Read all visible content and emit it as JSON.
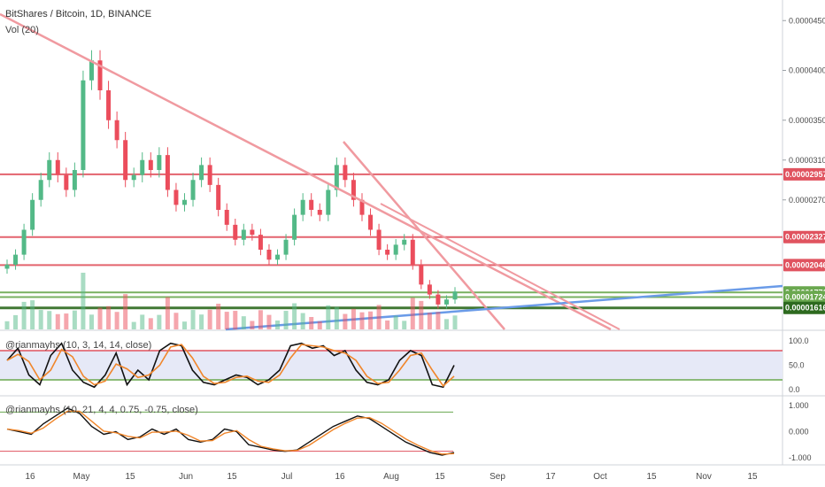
{
  "header": {
    "symbol": "BitShares / Bitcoin, 1D, BINANCE",
    "volume_label": "Vol (20)"
  },
  "indicators": {
    "stoch": {
      "label": "@rianmayhs (10, 3, 14, 14, close)",
      "ticks": [
        "100.0",
        "50.0",
        "0.0"
      ]
    },
    "osc": {
      "label": "@rianmayhs (10, 21, 4, 4, 0.75, -0.75, close)",
      "ticks": [
        "1.000",
        "0.000",
        "-1.000"
      ]
    }
  },
  "colors": {
    "up": "#53b987",
    "down": "#eb4d5c",
    "level_red": "#e0535f",
    "level_green": "#6aa84f",
    "trend_pink": "#f09aa0",
    "trend_blue": "#6a9be8",
    "dark_green": "#2d6a1f",
    "black": "#111111",
    "orange": "#f0862b"
  },
  "chart_data": {
    "type": "candlestick",
    "title": "BitShares / Bitcoin, 1D, BINANCE",
    "y_ticks": [
      "0.00004500",
      "0.00004000",
      "0.00003500",
      "0.00003100",
      "0.00002700"
    ],
    "y_range": [
      1.4e-05,
      4.6e-05
    ],
    "x_ticks": [
      "16",
      "May",
      "15",
      "Jun",
      "15",
      "Jul",
      "16",
      "Aug",
      "15",
      "Sep",
      "17",
      "Oct",
      "15",
      "Nov",
      "15"
    ],
    "price_levels": [
      {
        "value": "0.00002957",
        "kind": "resistance",
        "color": "#e0535f"
      },
      {
        "value": "0.00002327",
        "kind": "resistance",
        "color": "#e0535f"
      },
      {
        "value": "0.00002046",
        "kind": "resistance",
        "color": "#e0535f"
      },
      {
        "value": "0.00001771",
        "kind": "level",
        "color": "#6aa84f"
      },
      {
        "value": "0.00001724",
        "kind": "level",
        "color": "#6aa84f"
      },
      {
        "value": "0.00001616",
        "kind": "support",
        "color": "#2d6a1f"
      }
    ],
    "series_close": [
      2.05e-05,
      2.15e-05,
      2.4e-05,
      2.7e-05,
      2.9e-05,
      3.1e-05,
      2.95e-05,
      2.8e-05,
      3e-05,
      3.9e-05,
      4.1e-05,
      3.8e-05,
      3.5e-05,
      3.3e-05,
      2.9e-05,
      2.95e-05,
      3.1e-05,
      3e-05,
      3.15e-05,
      2.8e-05,
      2.65e-05,
      2.7e-05,
      2.9e-05,
      3.05e-05,
      2.85e-05,
      2.6e-05,
      2.45e-05,
      2.3e-05,
      2.4e-05,
      2.35e-05,
      2.2e-05,
      2.1e-05,
      2.15e-05,
      2.3e-05,
      2.55e-05,
      2.7e-05,
      2.6e-05,
      2.55e-05,
      2.8e-05,
      3.05e-05,
      2.9e-05,
      2.7e-05,
      2.55e-05,
      2.4e-05,
      2.2e-05,
      2.15e-05,
      2.25e-05,
      2.3e-05,
      2.05e-05,
      1.85e-05,
      1.75e-05,
      1.65e-05,
      1.7e-05,
      1.78e-05
    ],
    "stoch_ticks": [
      "100.0",
      "50.0",
      "0.0"
    ],
    "osc_ticks": [
      "1.000",
      "0.000",
      "-1.000"
    ]
  }
}
